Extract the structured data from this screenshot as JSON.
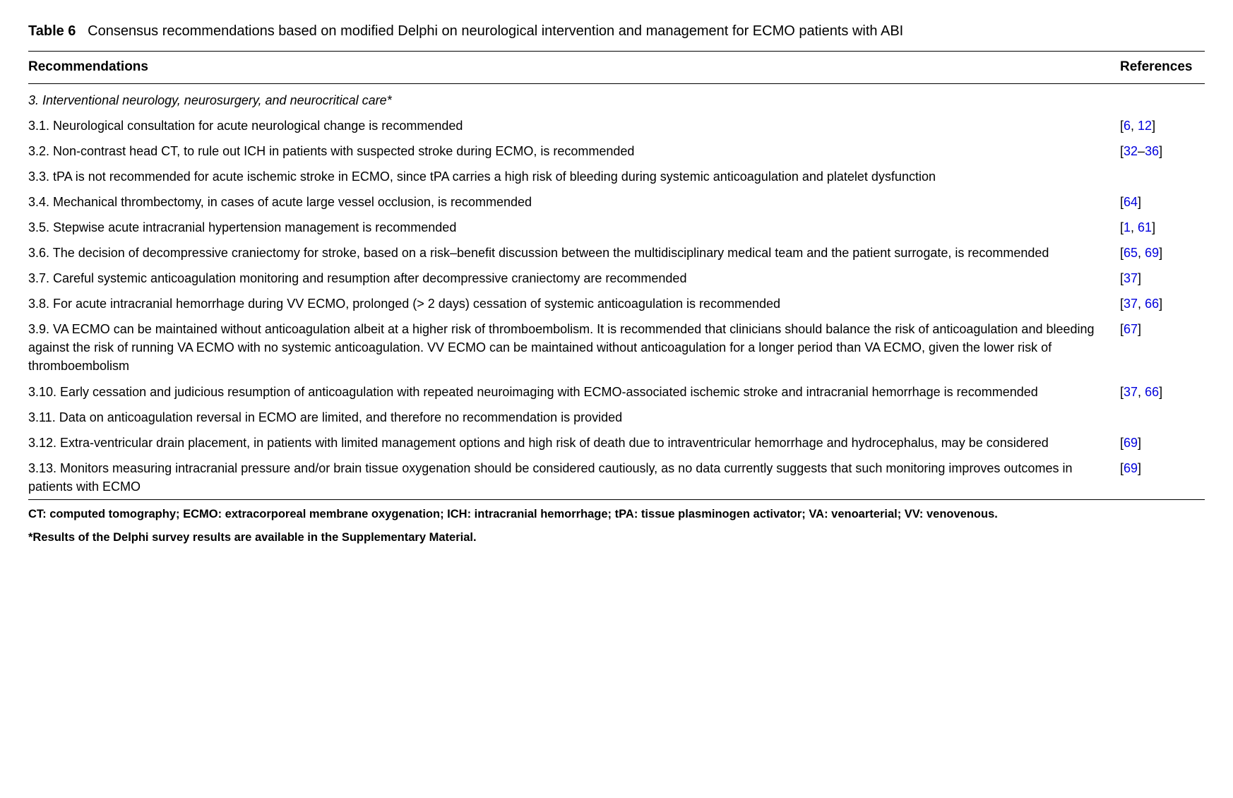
{
  "title": {
    "label": "Table 6",
    "text": "Consensus recommendations based on modified Delphi on neurological intervention and management for ECMO patients with ABI"
  },
  "headers": {
    "recommendations": "Recommendations",
    "references": "References"
  },
  "section_header": "3. Interventional neurology, neurosurgery, and neurocritical care*",
  "rows": [
    {
      "text": "3.1. Neurological consultation for acute neurological change is recommended",
      "refs": [
        "6",
        ", ",
        "12"
      ],
      "ref_pattern": "brackets-list"
    },
    {
      "text": "3.2. Non-contrast head CT, to rule out ICH in patients with suspected stroke during ECMO, is recommended",
      "refs": [
        "32",
        "–",
        "36"
      ],
      "ref_pattern": "brackets-range"
    },
    {
      "text": "3.3. tPA is not recommended for acute ischemic stroke in ECMO, since tPA carries a high risk of bleeding during systemic anticoagulation and platelet dysfunction",
      "refs": [],
      "ref_pattern": "none"
    },
    {
      "text": "3.4. Mechanical thrombectomy, in cases of acute large vessel occlusion, is recommended",
      "refs": [
        "64"
      ],
      "ref_pattern": "brackets-single"
    },
    {
      "text": "3.5. Stepwise acute intracranial hypertension management is recommended",
      "refs": [
        "1",
        ", ",
        "61"
      ],
      "ref_pattern": "brackets-list"
    },
    {
      "text": "3.6. The decision of decompressive craniectomy for stroke, based on a risk–benefit discussion between the multidisciplinary medical team and the patient surrogate, is recommended",
      "refs": [
        "65",
        ", ",
        "69"
      ],
      "ref_pattern": "brackets-list"
    },
    {
      "text": "3.7. Careful systemic anticoagulation monitoring and resumption after decompressive craniectomy are recommended",
      "refs": [
        "37"
      ],
      "ref_pattern": "brackets-single"
    },
    {
      "text": "3.8. For acute intracranial hemorrhage during VV ECMO, prolonged (> 2 days) cessation of systemic anticoagulation is recommended",
      "refs": [
        "37",
        ", ",
        "66"
      ],
      "ref_pattern": "brackets-list"
    },
    {
      "text": "3.9. VA ECMO can be maintained without anticoagulation albeit at a higher risk of thromboembolism. It is recommended that clinicians should balance the risk of anticoagulation and bleeding against the risk of running VA ECMO with no systemic anticoagulation. VV ECMO can be maintained without anticoagulation for a longer period than VA ECMO, given the lower risk of thromboembolism",
      "refs": [
        "67"
      ],
      "ref_pattern": "brackets-single"
    },
    {
      "text": "3.10. Early cessation and judicious resumption of anticoagulation with repeated neuroimaging with ECMO-associated ischemic stroke and intracranial hemorrhage is recommended",
      "refs": [
        "37",
        ", ",
        "66"
      ],
      "ref_pattern": "brackets-list"
    },
    {
      "text": "3.11. Data on anticoagulation reversal in ECMO are limited, and therefore no recommendation is provided",
      "refs": [],
      "ref_pattern": "none"
    },
    {
      "text": "3.12. Extra-ventricular drain placement, in patients with limited management options and high risk of death due to intraventricular hemorrhage and hydrocephalus, may be considered",
      "refs": [
        "69"
      ],
      "ref_pattern": "brackets-single"
    },
    {
      "text": "3.13. Monitors measuring intracranial pressure and/or brain tissue oxygenation should be considered cautiously, as no data currently suggests that such monitoring improves outcomes in patients with ECMO",
      "refs": [
        "69"
      ],
      "ref_pattern": "brackets-single"
    }
  ],
  "footnotes": [
    "CT: computed tomography; ECMO: extracorporeal membrane oxygenation; ICH: intracranial hemorrhage; tPA: tissue plasminogen activator; VA: venoarterial; VV: venovenous.",
    "*Results of the Delphi survey results are available in the Supplementary Material."
  ],
  "colors": {
    "text": "#000000",
    "link": "#0000dd",
    "border": "#000000",
    "background": "#ffffff"
  }
}
